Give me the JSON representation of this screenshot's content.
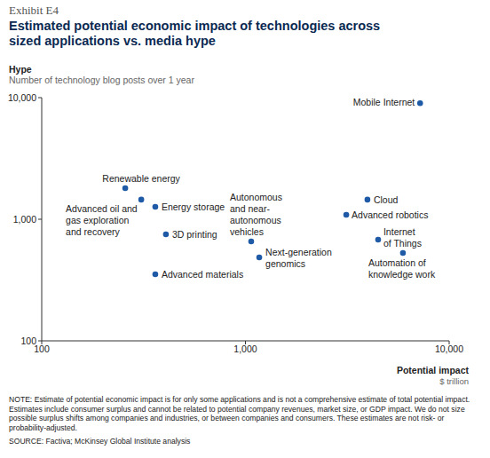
{
  "chart_data": {
    "type": "scatter",
    "exhibit": "Exhibit E4",
    "title": "Estimated potential economic impact of technologies across\nsized applications vs. media hype",
    "y_label": "Hype",
    "y_sublabel": "Number of technology blog posts over 1 year",
    "x_label": "Potential impact",
    "x_unit": "$ trillion",
    "labels": [
      "Mobile Internet",
      "Renewable energy",
      "Advanced oil and\ngas exploration\nand recovery",
      "Energy storage",
      "3D printing",
      "Advanced materials",
      "Autonomous\nand near-\nautonomous\nvehicles",
      "Next-generation\ngenomics",
      "Cloud",
      "Advanced robotics",
      "Internet\nof Things",
      "Automation of\nknowledge work"
    ],
    "x": [
      7200,
      257,
      308,
      361,
      407,
      361,
      1067,
      1169,
      3970,
      3125,
      4480,
      5930
    ],
    "values": [
      9000,
      1800,
      1450,
      1265,
      751,
      353,
      657,
      486,
      1450,
      1088,
      680,
      528
    ],
    "color": "#1f5aa6",
    "marker": "circle",
    "log": true,
    "grid": false,
    "xlim": [
      100,
      10000
    ],
    "xticks": [
      100,
      {
        "value": 1000,
        "label": "1,000"
      },
      {
        "value": 10000,
        "label": "10,000"
      }
    ],
    "ylim": [
      100,
      10000
    ],
    "yticks": [
      100,
      {
        "value": 1000,
        "label": "1,000"
      },
      {
        "value": 10000,
        "label": "10,000"
      }
    ],
    "note": "NOTE: Estimate of potential economic impact is for only some applications and is not a comprehensive estimate of total potential impact. Estimates include consumer surplus and cannot be related to potential company revenues, market size, or GDP impact. We do not size possible surplus shifts among companies and industries, or between companies and consumers. These estimates are not risk- or probability-adjusted.",
    "source": "SOURCE: Factiva; McKinsey Global Institute analysis"
  }
}
